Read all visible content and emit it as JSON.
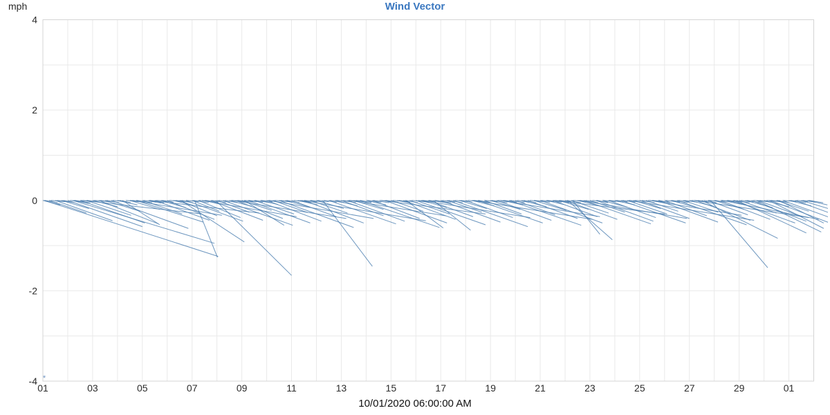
{
  "chart": {
    "title": "Wind Vector",
    "unit_label": "mph",
    "x_axis_caption": "10/01/2020 06:00:00 AM",
    "corner_marker": "*"
  },
  "colors": {
    "title": "#3b78c0",
    "vector": "#4a7eb0",
    "grid": "#e9e9e9",
    "border": "#d4d4d4",
    "tick_text": "#2b2b2b",
    "marker": "#6f94c2"
  },
  "chart_data": {
    "type": "vector",
    "title": "Wind Vector",
    "ylabel": "mph",
    "ylim": [
      -4,
      4
    ],
    "y_tick_labels": [
      "4",
      "2",
      "0",
      "-2",
      "-4"
    ],
    "x_tick_labels": [
      "01",
      "03",
      "05",
      "07",
      "09",
      "11",
      "13",
      "15",
      "17",
      "19",
      "21",
      "23",
      "25",
      "27",
      "29",
      "01"
    ],
    "x_caption": "10/01/2020 06:00:00 AM",
    "x_day_span": [
      1,
      32
    ],
    "grid": true,
    "legend": false,
    "description": "Wind vectors drawn from the zero line; each segment starts at its timestamp on y=0 and extends by (u days, v mph).",
    "vectors": [
      [
        1.0,
        0.7,
        -0.1
      ],
      [
        1.05,
        7.0,
        -1.24
      ],
      [
        1.25,
        1.5,
        -0.28
      ],
      [
        1.5,
        2.3,
        -0.45
      ],
      [
        1.75,
        1.1,
        -0.18
      ],
      [
        2.0,
        3.0,
        -0.58
      ],
      [
        2.2,
        5.7,
        -0.95
      ],
      [
        2.25,
        0.6,
        -0.07
      ],
      [
        2.5,
        2.6,
        -0.5
      ],
      [
        2.6,
        4.8,
        -0.3
      ],
      [
        2.75,
        1.8,
        -0.33
      ],
      [
        3.0,
        1.0,
        -0.14
      ],
      [
        3.25,
        2.4,
        -0.52
      ],
      [
        3.5,
        1.4,
        -0.24
      ],
      [
        3.75,
        3.1,
        -0.62
      ],
      [
        4.0,
        0.8,
        -0.1
      ],
      [
        4.2,
        1.5,
        -0.54
      ],
      [
        4.5,
        1.2,
        -0.2
      ],
      [
        4.6,
        3.6,
        -0.33
      ],
      [
        4.75,
        2.7,
        -0.48
      ],
      [
        5.0,
        1.6,
        -0.3
      ],
      [
        5.25,
        0.5,
        -0.06
      ],
      [
        5.3,
        4.4,
        -0.28
      ],
      [
        5.5,
        2.2,
        -0.44
      ],
      [
        5.75,
        1.0,
        -0.16
      ],
      [
        6.0,
        1.9,
        -0.42
      ],
      [
        6.25,
        0.8,
        -0.11
      ],
      [
        6.5,
        1.5,
        -0.34
      ],
      [
        6.55,
        2.55,
        -0.92
      ],
      [
        6.75,
        2.3,
        -0.46
      ],
      [
        7.0,
        1.1,
        -0.24
      ],
      [
        7.1,
        0.92,
        -1.26
      ],
      [
        7.25,
        1.7,
        -0.38
      ],
      [
        7.4,
        3.8,
        -0.36
      ],
      [
        7.5,
        0.6,
        -0.08
      ],
      [
        7.75,
        2.1,
        -0.44
      ],
      [
        7.95,
        3.05,
        -1.66
      ],
      [
        8.0,
        1.3,
        -0.26
      ],
      [
        8.25,
        2.8,
        -0.55
      ],
      [
        8.5,
        0.9,
        -0.13
      ],
      [
        8.6,
        4.6,
        -0.4
      ],
      [
        8.75,
        1.9,
        -0.4
      ],
      [
        9.0,
        1.2,
        -0.22
      ],
      [
        9.1,
        1.6,
        -0.55
      ],
      [
        9.25,
        2.5,
        -0.5
      ],
      [
        9.5,
        1.6,
        -0.3
      ],
      [
        9.75,
        0.7,
        -0.09
      ],
      [
        10.0,
        2.2,
        -0.46
      ],
      [
        10.1,
        4.2,
        -0.4
      ],
      [
        10.25,
        1.4,
        -0.27
      ],
      [
        10.5,
        3.0,
        -0.6
      ],
      [
        10.75,
        1.0,
        -0.15
      ],
      [
        11.0,
        1.8,
        -0.36
      ],
      [
        11.25,
        0.8,
        -0.1
      ],
      [
        11.4,
        5.0,
        -0.45
      ],
      [
        11.5,
        2.4,
        -0.5
      ],
      [
        11.75,
        1.5,
        -0.28
      ],
      [
        12.0,
        1.1,
        -0.18
      ],
      [
        12.25,
        2.0,
        -1.46
      ],
      [
        12.5,
        2.7,
        -0.52
      ],
      [
        12.75,
        0.9,
        -0.12
      ],
      [
        13.0,
        1.7,
        -0.34
      ],
      [
        13.25,
        2.3,
        -0.46
      ],
      [
        13.3,
        3.9,
        -0.34
      ],
      [
        13.5,
        1.2,
        -0.2
      ],
      [
        13.75,
        3.2,
        -0.6
      ],
      [
        14.0,
        0.8,
        -0.1
      ],
      [
        14.25,
        1.9,
        -0.4
      ],
      [
        14.6,
        4.2,
        -0.3
      ],
      [
        14.75,
        2.5,
        -0.5
      ],
      [
        15.0,
        1.3,
        -0.24
      ],
      [
        15.25,
        0.6,
        -0.07
      ],
      [
        15.5,
        2.1,
        -0.42
      ],
      [
        15.6,
        1.5,
        -0.61
      ],
      [
        15.75,
        1.6,
        -0.3
      ],
      [
        16.0,
        2.8,
        -0.54
      ],
      [
        16.2,
        4.4,
        -0.38
      ],
      [
        16.25,
        1.0,
        -0.16
      ],
      [
        16.5,
        1.8,
        -0.36
      ],
      [
        16.7,
        1.5,
        -0.66
      ],
      [
        16.75,
        0.7,
        -0.08
      ],
      [
        17.0,
        2.4,
        -0.48
      ],
      [
        17.25,
        1.4,
        -0.26
      ],
      [
        17.5,
        3.0,
        -0.58
      ],
      [
        17.75,
        1.1,
        -0.18
      ],
      [
        18.0,
        1.9,
        -0.38
      ],
      [
        18.25,
        0.9,
        -0.12
      ],
      [
        18.3,
        4.8,
        -0.42
      ],
      [
        18.5,
        2.6,
        -0.5
      ],
      [
        18.75,
        1.5,
        -0.3
      ],
      [
        19.0,
        1.2,
        -0.2
      ],
      [
        19.25,
        2.2,
        -0.44
      ],
      [
        19.4,
        4.0,
        -0.36
      ],
      [
        19.5,
        0.8,
        -0.1
      ],
      [
        19.75,
        2.9,
        -0.55
      ],
      [
        20.0,
        1.6,
        -0.32
      ],
      [
        20.25,
        1.0,
        -0.14
      ],
      [
        20.5,
        2.0,
        -0.4
      ],
      [
        20.75,
        1.3,
        -0.22
      ],
      [
        21.0,
        2.5,
        -0.5
      ],
      [
        21.25,
        0.7,
        -0.09
      ],
      [
        21.5,
        1.8,
        -0.36
      ],
      [
        21.6,
        4.4,
        -0.3
      ],
      [
        21.75,
        1.2,
        -0.2
      ],
      [
        22.0,
        2.1,
        -0.42
      ],
      [
        22.1,
        1.8,
        -0.87
      ],
      [
        22.25,
        1.5,
        -0.28
      ],
      [
        22.3,
        1.1,
        -0.75
      ],
      [
        22.5,
        0.9,
        -0.12
      ],
      [
        22.6,
        4.3,
        -0.4
      ],
      [
        22.75,
        2.7,
        -0.52
      ],
      [
        23.0,
        1.4,
        -0.26
      ],
      [
        23.25,
        2.3,
        -0.46
      ],
      [
        23.5,
        1.0,
        -0.15
      ],
      [
        23.75,
        1.9,
        -0.38
      ],
      [
        24.0,
        0.8,
        -0.1
      ],
      [
        24.25,
        2.6,
        -0.5
      ],
      [
        24.5,
        1.6,
        -0.3
      ],
      [
        24.6,
        5.0,
        -0.44
      ],
      [
        24.75,
        1.1,
        -0.18
      ],
      [
        25.0,
        2.0,
        -0.4
      ],
      [
        25.25,
        1.3,
        -0.24
      ],
      [
        25.4,
        3.7,
        -0.33
      ],
      [
        25.5,
        0.7,
        -0.08
      ],
      [
        25.75,
        2.4,
        -0.48
      ],
      [
        26.0,
        1.7,
        -0.34
      ],
      [
        26.25,
        1.0,
        -0.15
      ],
      [
        26.5,
        2.8,
        -0.54
      ],
      [
        26.75,
        1.4,
        -0.26
      ],
      [
        27.0,
        0.9,
        -0.12
      ],
      [
        27.2,
        4.6,
        -0.38
      ],
      [
        27.25,
        2.2,
        -0.44
      ],
      [
        27.5,
        3.05,
        -0.84
      ],
      [
        27.75,
        1.6,
        -0.32
      ],
      [
        27.85,
        2.3,
        -1.49
      ],
      [
        28.0,
        1.2,
        -0.2
      ],
      [
        28.25,
        2.0,
        -0.42
      ],
      [
        28.3,
        3.9,
        -0.42
      ],
      [
        28.5,
        0.8,
        -0.1
      ],
      [
        28.75,
        2.5,
        -0.5
      ],
      [
        28.9,
        2.8,
        -0.72
      ],
      [
        29.0,
        1.5,
        -0.28
      ],
      [
        29.25,
        1.1,
        -0.16
      ],
      [
        29.5,
        2.2,
        -0.46
      ],
      [
        29.7,
        2.6,
        -0.7
      ],
      [
        29.75,
        1.8,
        -0.36
      ],
      [
        30.0,
        1.0,
        -0.14
      ],
      [
        30.2,
        2.2,
        -0.62
      ],
      [
        30.25,
        2.4,
        -0.5
      ],
      [
        30.5,
        1.3,
        -0.24
      ],
      [
        30.6,
        1.8,
        -0.5
      ],
      [
        30.75,
        2.0,
        -0.4
      ],
      [
        31.0,
        0.9,
        -0.12
      ],
      [
        31.25,
        1.7,
        -0.34
      ],
      [
        31.5,
        1.2,
        -0.2
      ],
      [
        31.75,
        0.8,
        -0.1
      ]
    ],
    "zero_line_fuzz": {
      "day_start": 1,
      "day_end": 31,
      "offsets": [
        0.04,
        0.28,
        0.52,
        0.76
      ],
      "u_base": 0.45,
      "v_base": -0.028
    }
  }
}
